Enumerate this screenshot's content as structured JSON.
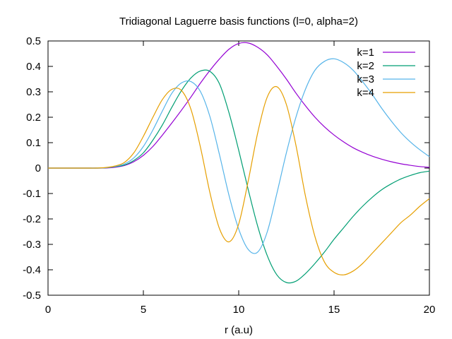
{
  "chart_data": {
    "type": "line",
    "title": "Tridiagonal Laguerre basis functions (l=0, alpha=2)",
    "xlabel": "r (a.u)",
    "ylabel": "",
    "xlim": [
      0,
      20
    ],
    "ylim": [
      -0.5,
      0.5
    ],
    "xticks": [
      0,
      5,
      10,
      15,
      20
    ],
    "xtick_labels": [
      "0",
      "5",
      "10",
      "15",
      "20"
    ],
    "yticks": [
      -0.5,
      -0.4,
      -0.3,
      -0.2,
      -0.1,
      0,
      0.1,
      0.2,
      0.3,
      0.4,
      0.5
    ],
    "ytick_labels": [
      "-0.5",
      "-0.4",
      "-0.3",
      "-0.2",
      "-0.1",
      "0",
      "0.1",
      "0.2",
      "0.3",
      "0.4",
      "0.5"
    ],
    "grid": false,
    "legend_position": "top-right",
    "x": [
      0,
      1,
      2,
      2.5,
      3,
      3.5,
      4,
      4.5,
      5,
      5.5,
      6,
      6.5,
      7,
      7.5,
      8,
      8.5,
      9,
      9.5,
      10,
      10.5,
      11,
      11.5,
      12,
      12.5,
      13,
      13.5,
      14,
      14.5,
      15,
      15.5,
      16,
      16.5,
      17,
      17.5,
      18,
      18.5,
      19,
      19.5,
      20
    ],
    "series": [
      {
        "name": "k=1",
        "color": "#9400d3",
        "values": [
          0,
          0,
          0,
          0,
          0,
          0.003,
          0.01,
          0.025,
          0.05,
          0.085,
          0.13,
          0.178,
          0.228,
          0.28,
          0.335,
          0.385,
          0.43,
          0.468,
          0.49,
          0.492,
          0.475,
          0.445,
          0.4,
          0.35,
          0.295,
          0.245,
          0.2,
          0.162,
          0.13,
          0.103,
          0.08,
          0.062,
          0.047,
          0.035,
          0.025,
          0.017,
          0.011,
          0.006,
          0.003
        ]
      },
      {
        "name": "k=2",
        "color": "#009e73",
        "values": [
          0,
          0,
          0,
          0,
          0.001,
          0.005,
          0.012,
          0.03,
          0.06,
          0.11,
          0.17,
          0.24,
          0.305,
          0.355,
          0.382,
          0.38,
          0.33,
          0.215,
          0.07,
          -0.085,
          -0.23,
          -0.345,
          -0.42,
          -0.45,
          -0.445,
          -0.415,
          -0.375,
          -0.33,
          -0.28,
          -0.235,
          -0.19,
          -0.15,
          -0.115,
          -0.085,
          -0.062,
          -0.043,
          -0.029,
          -0.018,
          -0.012
        ]
      },
      {
        "name": "k=3",
        "color": "#56b4e9",
        "values": [
          0,
          0,
          0,
          0,
          0.001,
          0.006,
          0.016,
          0.04,
          0.085,
          0.15,
          0.225,
          0.295,
          0.335,
          0.34,
          0.3,
          0.2,
          0.05,
          -0.11,
          -0.24,
          -0.32,
          -0.33,
          -0.25,
          -0.1,
          0.06,
          0.2,
          0.31,
          0.385,
          0.42,
          0.43,
          0.415,
          0.385,
          0.34,
          0.29,
          0.235,
          0.185,
          0.14,
          0.103,
          0.072,
          0.045
        ]
      },
      {
        "name": "k=4",
        "color": "#e69f00",
        "values": [
          0,
          0,
          0,
          0,
          0.002,
          0.008,
          0.022,
          0.06,
          0.125,
          0.2,
          0.27,
          0.31,
          0.305,
          0.23,
          0.08,
          -0.1,
          -0.24,
          -0.29,
          -0.22,
          -0.05,
          0.14,
          0.28,
          0.32,
          0.25,
          0.09,
          -0.11,
          -0.27,
          -0.37,
          -0.41,
          -0.42,
          -0.405,
          -0.375,
          -0.335,
          -0.295,
          -0.255,
          -0.215,
          -0.185,
          -0.15,
          -0.12
        ]
      }
    ]
  }
}
